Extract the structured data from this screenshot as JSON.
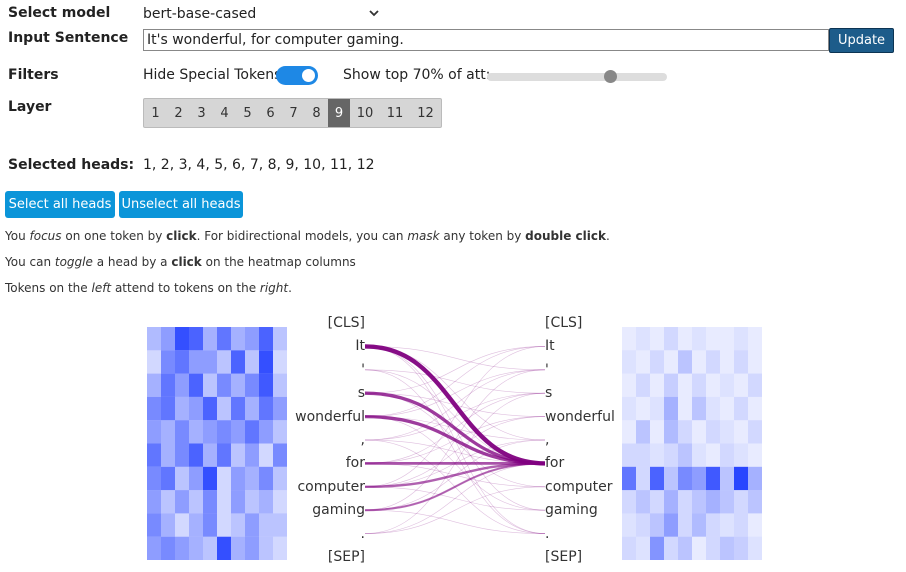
{
  "controls": {
    "model_label": "Select model",
    "model_value": "bert-base-cased",
    "sentence_label": "Input Sentence",
    "sentence_value": "It's wonderful, for computer gaming.",
    "update_label": "Update",
    "filters_label": "Filters",
    "hide_special_label": "Hide Special Tokens",
    "hide_special_on": true,
    "show_top_label": "Show top 70% of att:",
    "show_top_value": 0.7,
    "layer_label": "Layer",
    "layers": [
      "1",
      "2",
      "3",
      "4",
      "5",
      "6",
      "7",
      "8",
      "9",
      "10",
      "11",
      "12"
    ],
    "selected_layer": "9",
    "selected_heads_label": "Selected heads:",
    "selected_heads_value": "1, 2, 3, 4, 5, 6, 7, 8, 9, 10, 11, 12",
    "select_all_label": "Select all heads",
    "unselect_all_label": "Unselect all heads"
  },
  "help": {
    "line1": [
      {
        "t": "You ",
        "s": ""
      },
      {
        "t": "focus",
        "s": "em"
      },
      {
        "t": " on one token by ",
        "s": ""
      },
      {
        "t": "click",
        "s": "b"
      },
      {
        "t": ". For bidirectional models, you can ",
        "s": ""
      },
      {
        "t": "mask",
        "s": "em"
      },
      {
        "t": " any token by ",
        "s": ""
      },
      {
        "t": "double click",
        "s": "b"
      },
      {
        "t": ".",
        "s": ""
      }
    ],
    "line2": [
      {
        "t": "You can ",
        "s": ""
      },
      {
        "t": "toggle",
        "s": "em"
      },
      {
        "t": " a head by a ",
        "s": ""
      },
      {
        "t": "click",
        "s": "b"
      },
      {
        "t": " on the heatmap columns",
        "s": ""
      }
    ],
    "line3": [
      {
        "t": "Tokens on the ",
        "s": ""
      },
      {
        "t": "left",
        "s": "em"
      },
      {
        "t": " attend to tokens on the ",
        "s": ""
      },
      {
        "t": "right",
        "s": "em"
      },
      {
        "t": ".",
        "s": ""
      }
    ]
  },
  "tokens": [
    "[CLS]",
    "It",
    "'",
    "s",
    "wonderful",
    ",",
    "for",
    "computer",
    "gaming",
    ".",
    "[SEP]"
  ],
  "line_color": "#800080",
  "heatmap_color": "#1e3cff",
  "attention_strong": [
    {
      "from": "It",
      "to": "for",
      "w": 1.0
    },
    {
      "from": "s",
      "to": "for",
      "w": 0.7
    },
    {
      "from": "wonderful",
      "to": "for",
      "w": 0.7
    },
    {
      "from": "for",
      "to": "for",
      "w": 0.55
    },
    {
      "from": "computer",
      "to": "for",
      "w": 0.45
    },
    {
      "from": "gaming",
      "to": "for",
      "w": 0.35
    }
  ],
  "heatmap_left": [
    [
      0.35,
      0.5,
      0.9,
      0.8,
      0.4,
      0.7,
      0.4,
      0.5,
      0.8,
      0.3
    ],
    [
      0.2,
      0.6,
      0.7,
      0.5,
      0.5,
      0.3,
      0.8,
      0.3,
      0.9,
      0.2
    ],
    [
      0.4,
      0.7,
      0.5,
      0.8,
      0.3,
      0.6,
      0.4,
      0.6,
      0.85,
      0.3
    ],
    [
      0.6,
      0.7,
      0.4,
      0.5,
      0.8,
      0.3,
      0.7,
      0.4,
      0.7,
      0.5
    ],
    [
      0.5,
      0.4,
      0.6,
      0.4,
      0.5,
      0.6,
      0.5,
      0.7,
      0.5,
      0.3
    ],
    [
      0.7,
      0.4,
      0.6,
      0.8,
      0.4,
      0.7,
      0.3,
      0.5,
      0.2,
      0.6
    ],
    [
      0.6,
      0.7,
      0.3,
      0.5,
      0.9,
      0.2,
      0.5,
      0.4,
      0.6,
      0.3
    ],
    [
      0.5,
      0.3,
      0.5,
      0.3,
      0.6,
      0.2,
      0.5,
      0.3,
      0.4,
      0.2
    ],
    [
      0.6,
      0.4,
      0.2,
      0.4,
      0.6,
      0.2,
      0.3,
      0.5,
      0.3,
      0.3
    ],
    [
      0.5,
      0.6,
      0.5,
      0.4,
      0.3,
      0.9,
      0.4,
      0.5,
      0.3,
      0.2
    ]
  ],
  "heatmap_right": [
    [
      0.1,
      0.15,
      0.1,
      0.2,
      0.1,
      0.15,
      0.1,
      0.1,
      0.15,
      0.1
    ],
    [
      0.15,
      0.1,
      0.2,
      0.1,
      0.3,
      0.1,
      0.2,
      0.1,
      0.2,
      0.1
    ],
    [
      0.1,
      0.2,
      0.1,
      0.25,
      0.1,
      0.2,
      0.1,
      0.15,
      0.1,
      0.2
    ],
    [
      0.15,
      0.1,
      0.15,
      0.4,
      0.1,
      0.3,
      0.15,
      0.1,
      0.2,
      0.1
    ],
    [
      0.1,
      0.3,
      0.1,
      0.35,
      0.2,
      0.1,
      0.2,
      0.15,
      0.1,
      0.2
    ],
    [
      0.2,
      0.2,
      0.15,
      0.2,
      0.3,
      0.15,
      0.1,
      0.2,
      0.15,
      0.1
    ],
    [
      0.7,
      0.2,
      0.8,
      0.3,
      0.6,
      0.5,
      0.85,
      0.3,
      0.95,
      0.4
    ],
    [
      0.2,
      0.3,
      0.2,
      0.4,
      0.2,
      0.3,
      0.4,
      0.3,
      0.2,
      0.3
    ],
    [
      0.15,
      0.2,
      0.3,
      0.5,
      0.2,
      0.35,
      0.2,
      0.15,
      0.2,
      0.1
    ],
    [
      0.2,
      0.15,
      0.55,
      0.2,
      0.3,
      0.1,
      0.2,
      0.3,
      0.25,
      0.15
    ]
  ]
}
